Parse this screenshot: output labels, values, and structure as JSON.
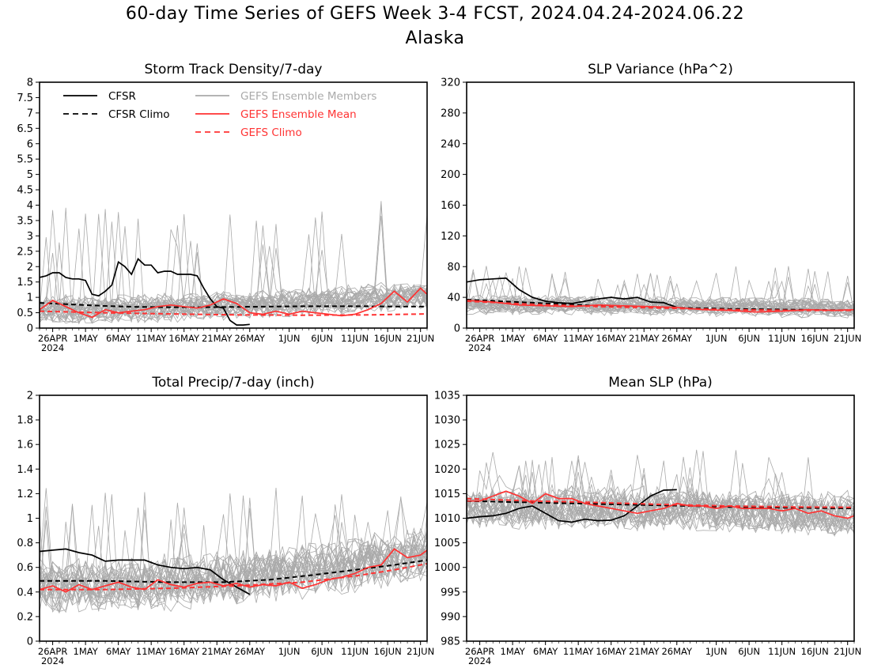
{
  "header": {
    "title": "60-day Time Series of GEFS Week 3-4 FCST, 2024.04.24-2024.06.22",
    "subtitle": "Alaska"
  },
  "legend": {
    "cfsr": "CFSR",
    "cfsr_climo": "CFSR Climo",
    "members": "GEFS Ensemble Members",
    "mean": "GEFS Ensemble Mean",
    "gefs_climo": "GEFS Climo"
  },
  "colors": {
    "cfsr": "#000000",
    "members": "#aaaaaa",
    "gefs": "#ff3333",
    "axis": "#000000"
  },
  "x_axis": {
    "ticks": [
      {
        "day": 2,
        "label": "26APR",
        "sub": "2024"
      },
      {
        "day": 7,
        "label": "1MAY"
      },
      {
        "day": 12,
        "label": "6MAY"
      },
      {
        "day": 17,
        "label": "11MAY"
      },
      {
        "day": 22,
        "label": "16MAY"
      },
      {
        "day": 27,
        "label": "21MAY"
      },
      {
        "day": 32,
        "label": "26MAY"
      },
      {
        "day": 38,
        "label": "1JUN"
      },
      {
        "day": 43,
        "label": "6JUN"
      },
      {
        "day": 48,
        "label": "11JUN"
      },
      {
        "day": 53,
        "label": "16JUN"
      },
      {
        "day": 58,
        "label": "21JUN"
      }
    ]
  },
  "chart_data": [
    {
      "type": "line",
      "title": "Storm Track Density/7-day",
      "ylim": [
        0,
        8
      ],
      "yticks": [
        "0",
        "0.5",
        "1",
        "1.5",
        "2",
        "2.5",
        "3",
        "3.5",
        "4",
        "4.5",
        "5",
        "5.5",
        "6",
        "6.5",
        "7",
        "7.5",
        "8"
      ],
      "x_range_days": [
        0,
        59
      ],
      "ensemble_members": {
        "count": 30,
        "center": 0.62,
        "spread": 0.45,
        "end_center": 1.1,
        "peak": 4.2
      },
      "series": [
        {
          "name": "CFSR",
          "style": "solid",
          "color": "#000000",
          "x": [
            0,
            1,
            2,
            3,
            4,
            5,
            6,
            7,
            8,
            9,
            10,
            11,
            12,
            13,
            14,
            15,
            16,
            17,
            18,
            19,
            20,
            21,
            22,
            23,
            24,
            25,
            26,
            27,
            28,
            29,
            30,
            31,
            32
          ],
          "values": [
            1.65,
            1.7,
            1.8,
            1.8,
            1.65,
            1.6,
            1.6,
            1.55,
            1.1,
            1.05,
            1.2,
            1.4,
            2.15,
            2.0,
            1.75,
            2.25,
            2.05,
            2.05,
            1.8,
            1.85,
            1.85,
            1.75,
            1.75,
            1.75,
            1.7,
            1.3,
            0.95,
            0.7,
            0.65,
            0.25,
            0.1,
            0.1,
            0.12
          ]
        },
        {
          "name": "CFSR Climo",
          "style": "dashed",
          "color": "#000000",
          "x": [
            0,
            5,
            10,
            15,
            20,
            25,
            30,
            35,
            40,
            45,
            50,
            55,
            59
          ],
          "values": [
            0.82,
            0.77,
            0.72,
            0.69,
            0.68,
            0.68,
            0.69,
            0.7,
            0.71,
            0.71,
            0.71,
            0.7,
            0.7
          ]
        },
        {
          "name": "GEFS Ensemble Mean",
          "style": "solid",
          "color": "#ff3333",
          "x": [
            0,
            2,
            4,
            6,
            8,
            10,
            12,
            14,
            16,
            18,
            20,
            22,
            24,
            26,
            28,
            30,
            32,
            34,
            36,
            38,
            40,
            42,
            44,
            46,
            48,
            50,
            52,
            54,
            56,
            58,
            59
          ],
          "values": [
            0.6,
            0.9,
            0.7,
            0.5,
            0.35,
            0.6,
            0.5,
            0.55,
            0.6,
            0.7,
            0.75,
            0.7,
            0.65,
            0.75,
            0.95,
            0.8,
            0.5,
            0.45,
            0.55,
            0.45,
            0.55,
            0.5,
            0.45,
            0.4,
            0.45,
            0.6,
            0.8,
            1.2,
            0.85,
            1.3,
            1.1
          ]
        },
        {
          "name": "GEFS Climo",
          "style": "dashed",
          "color": "#ff3333",
          "x": [
            0,
            10,
            20,
            30,
            40,
            50,
            59
          ],
          "values": [
            0.55,
            0.5,
            0.46,
            0.43,
            0.42,
            0.43,
            0.46
          ]
        }
      ]
    },
    {
      "type": "line",
      "title": "SLP Variance (hPa^2)",
      "ylim": [
        0,
        320
      ],
      "yticks": [
        "0",
        "40",
        "80",
        "120",
        "160",
        "200",
        "240",
        "280",
        "320"
      ],
      "x_range_days": [
        0,
        59
      ],
      "ensemble_members": {
        "count": 30,
        "center": 30,
        "spread": 12,
        "end_center": 25,
        "peak": 82
      },
      "series": [
        {
          "name": "CFSR",
          "style": "solid",
          "color": "#000000",
          "x": [
            0,
            2,
            4,
            6,
            8,
            10,
            12,
            14,
            16,
            18,
            20,
            22,
            24,
            26,
            28,
            30,
            32
          ],
          "values": [
            60,
            63,
            64,
            65,
            50,
            40,
            35,
            33,
            32,
            35,
            38,
            40,
            38,
            40,
            34,
            33,
            27
          ]
        },
        {
          "name": "CFSR Climo",
          "style": "dashed",
          "color": "#000000",
          "x": [
            0,
            10,
            20,
            30,
            40,
            50,
            59
          ],
          "values": [
            37,
            33,
            29,
            27,
            25,
            24,
            23
          ]
        },
        {
          "name": "GEFS Ensemble Mean",
          "style": "solid",
          "color": "#ff3333",
          "x": [
            0,
            4,
            8,
            12,
            16,
            20,
            24,
            28,
            32,
            36,
            40,
            44,
            48,
            52,
            56,
            59
          ],
          "values": [
            36,
            34,
            30,
            29,
            28,
            30,
            29,
            28,
            27,
            24,
            23,
            21,
            22,
            24,
            23,
            24
          ]
        },
        {
          "name": "GEFS Climo",
          "style": "dashed",
          "color": "#ff3333",
          "x": [
            0,
            10,
            20,
            30,
            40,
            50,
            59
          ],
          "values": [
            35,
            31,
            28,
            26,
            24,
            23,
            23
          ]
        }
      ]
    },
    {
      "type": "line",
      "title": "Total Precip/7-day (inch)",
      "ylim": [
        0,
        2
      ],
      "yticks": [
        "0",
        "0.2",
        "0.4",
        "0.6",
        "0.8",
        "1",
        "1.2",
        "1.4",
        "1.6",
        "1.8",
        "2"
      ],
      "x_range_days": [
        0,
        59
      ],
      "ensemble_members": {
        "count": 30,
        "center": 0.45,
        "spread": 0.22,
        "end_center": 0.72,
        "peak": 1.25
      },
      "series": [
        {
          "name": "CFSR",
          "style": "solid",
          "color": "#000000",
          "x": [
            0,
            2,
            4,
            6,
            8,
            10,
            12,
            14,
            16,
            18,
            20,
            22,
            24,
            26,
            28,
            30,
            32
          ],
          "values": [
            0.73,
            0.74,
            0.75,
            0.72,
            0.7,
            0.65,
            0.66,
            0.66,
            0.66,
            0.62,
            0.6,
            0.59,
            0.6,
            0.58,
            0.5,
            0.44,
            0.38
          ]
        },
        {
          "name": "CFSR Climo",
          "style": "dashed",
          "color": "#000000",
          "x": [
            0,
            10,
            20,
            28,
            35,
            42,
            48,
            54,
            59
          ],
          "values": [
            0.49,
            0.49,
            0.48,
            0.48,
            0.5,
            0.54,
            0.58,
            0.62,
            0.66
          ]
        },
        {
          "name": "GEFS Ensemble Mean",
          "style": "solid",
          "color": "#ff3333",
          "x": [
            0,
            2,
            4,
            6,
            8,
            10,
            12,
            14,
            16,
            18,
            20,
            22,
            24,
            26,
            28,
            30,
            32,
            34,
            36,
            38,
            40,
            42,
            44,
            46,
            48,
            50,
            52,
            54,
            56,
            58,
            59
          ],
          "values": [
            0.42,
            0.45,
            0.4,
            0.46,
            0.42,
            0.45,
            0.48,
            0.44,
            0.42,
            0.5,
            0.46,
            0.44,
            0.47,
            0.48,
            0.45,
            0.47,
            0.44,
            0.46,
            0.45,
            0.48,
            0.43,
            0.46,
            0.5,
            0.52,
            0.55,
            0.6,
            0.62,
            0.75,
            0.68,
            0.7,
            0.74
          ]
        },
        {
          "name": "GEFS Climo",
          "style": "dashed",
          "color": "#ff3333",
          "x": [
            0,
            10,
            20,
            30,
            40,
            48,
            54,
            59
          ],
          "values": [
            0.42,
            0.42,
            0.43,
            0.45,
            0.48,
            0.53,
            0.58,
            0.63
          ]
        }
      ]
    },
    {
      "type": "line",
      "title": "Mean SLP (hPa)",
      "ylim": [
        985,
        1035
      ],
      "yticks": [
        "985",
        "990",
        "995",
        "1000",
        "1005",
        "1010",
        "1015",
        "1020",
        "1025",
        "1030",
        "1035"
      ],
      "x_range_days": [
        0,
        59
      ],
      "ensemble_members": {
        "count": 30,
        "center": 1012.5,
        "spread": 4.5,
        "end_center": 1011,
        "peak": 1024
      },
      "series": [
        {
          "name": "CFSR",
          "style": "solid",
          "color": "#000000",
          "x": [
            0,
            2,
            4,
            6,
            8,
            10,
            12,
            14,
            16,
            18,
            20,
            22,
            24,
            26,
            28,
            30,
            32
          ],
          "values": [
            1010,
            1010.3,
            1010.5,
            1011,
            1012,
            1012.5,
            1011,
            1009.5,
            1009.2,
            1009.8,
            1009.5,
            1009.6,
            1010.5,
            1012.5,
            1014.5,
            1015.7,
            1015.8
          ]
        },
        {
          "name": "CFSR Climo",
          "style": "dashed",
          "color": "#000000",
          "x": [
            0,
            10,
            20,
            30,
            40,
            50,
            59
          ],
          "values": [
            1013.5,
            1013.2,
            1012.9,
            1012.6,
            1012.3,
            1012.1,
            1012
          ]
        },
        {
          "name": "GEFS Ensemble Mean",
          "style": "solid",
          "color": "#ff3333",
          "x": [
            0,
            2,
            4,
            6,
            8,
            10,
            12,
            14,
            16,
            18,
            20,
            22,
            24,
            26,
            28,
            30,
            32,
            34,
            36,
            38,
            40,
            42,
            44,
            46,
            48,
            50,
            52,
            54,
            56,
            58,
            59
          ],
          "values": [
            1013.5,
            1013.5,
            1014.5,
            1015.5,
            1014.5,
            1013,
            1015,
            1014,
            1014,
            1013,
            1012.5,
            1012,
            1011.5,
            1011,
            1011.5,
            1012,
            1013,
            1012.5,
            1012.5,
            1012,
            1012.5,
            1012,
            1012,
            1012,
            1011.5,
            1012,
            1011,
            1011.5,
            1010.5,
            1010,
            1010.5
          ]
        },
        {
          "name": "GEFS Climo",
          "style": "dashed",
          "color": "#ff3333",
          "x": [
            0,
            10,
            20,
            30,
            40,
            50,
            59
          ],
          "values": [
            1014,
            1013.5,
            1013.2,
            1012.8,
            1012.5,
            1012.3,
            1012.2
          ]
        }
      ]
    }
  ]
}
